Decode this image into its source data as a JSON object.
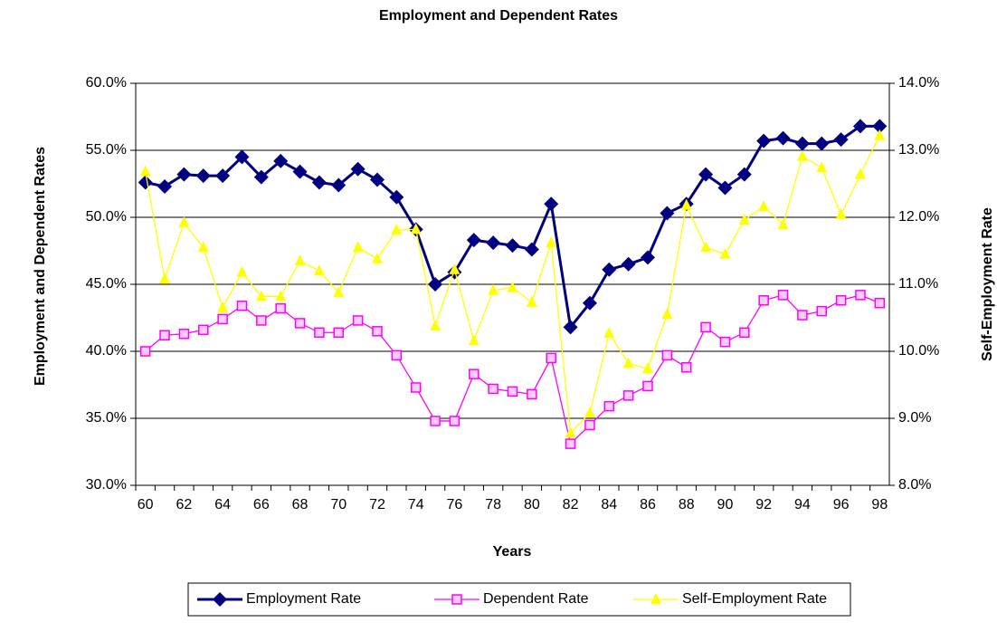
{
  "chart_data": {
    "type": "line",
    "title": "Employment and Dependent Rates",
    "xlabel": "Years",
    "ylabel": "Employment and Dependent Rates",
    "y2label": "Self-Employment Rate",
    "categories": [
      "60",
      null,
      "62",
      null,
      "64",
      null,
      "66",
      null,
      "68",
      null,
      "70",
      null,
      "72",
      null,
      "74",
      null,
      "76",
      null,
      "78",
      null,
      "80",
      null,
      "82",
      null,
      "84",
      null,
      "86",
      null,
      "88",
      null,
      "90",
      null,
      "92",
      null,
      "94",
      null,
      "96",
      null,
      "98"
    ],
    "series": [
      {
        "name": "Employment Rate",
        "color": "#000080",
        "marker": "diamond",
        "values": [
          52.6,
          52.3,
          53.2,
          53.1,
          53.1,
          54.5,
          53.0,
          54.2,
          53.4,
          52.6,
          52.4,
          53.6,
          52.8,
          51.5,
          49.1,
          45.0,
          45.9,
          48.3,
          48.1,
          47.9,
          47.6,
          51.0,
          41.8,
          43.6,
          46.1,
          46.5,
          47.0,
          50.3,
          51.0,
          53.2,
          52.2,
          53.2,
          55.7,
          55.9,
          55.5,
          55.5,
          55.8,
          56.8,
          56.8
        ]
      },
      {
        "name": "Dependent Rate",
        "color": "#ff00ff",
        "marker": "square",
        "values": [
          40.0,
          41.2,
          41.3,
          41.6,
          42.4,
          43.4,
          42.3,
          43.2,
          42.1,
          41.4,
          41.4,
          42.3,
          41.5,
          39.7,
          37.3,
          34.8,
          34.8,
          38.3,
          37.2,
          37.0,
          36.8,
          39.5,
          33.1,
          34.5,
          35.9,
          36.7,
          37.4,
          39.7,
          38.8,
          41.8,
          40.7,
          41.4,
          43.8,
          44.2,
          42.7,
          43.0,
          43.8,
          44.2,
          43.6
        ]
      },
      {
        "name": "Self-Employment Rate",
        "color": "#ffff00",
        "marker": "triangle",
        "axis": "y2",
        "values": [
          12.68,
          11.08,
          11.92,
          11.55,
          10.65,
          11.18,
          10.82,
          10.82,
          11.35,
          11.2,
          10.88,
          11.55,
          11.38,
          11.81,
          11.82,
          10.38,
          11.22,
          10.16,
          10.91,
          10.95,
          10.73,
          11.62,
          8.78,
          9.08,
          10.27,
          9.82,
          9.74,
          10.55,
          12.18,
          11.55,
          11.45,
          11.96,
          12.16,
          11.89,
          12.91,
          12.74,
          12.04,
          12.64,
          13.22
        ]
      }
    ],
    "ylim": [
      30,
      60
    ],
    "yticks": [
      {
        "value": 30,
        "label": "30.0%"
      },
      {
        "value": 35,
        "label": "35.0%"
      },
      {
        "value": 40,
        "label": "40.0%"
      },
      {
        "value": 45,
        "label": "45.0%"
      },
      {
        "value": 50,
        "label": "50.0%"
      },
      {
        "value": 55,
        "label": "55.0%"
      },
      {
        "value": 60,
        "label": "60.0%"
      }
    ],
    "y2lim": [
      8,
      14
    ],
    "y2ticks": [
      {
        "value": 8,
        "label": "8.0%"
      },
      {
        "value": 9,
        "label": "9.0%"
      },
      {
        "value": 10,
        "label": "10.0%"
      },
      {
        "value": 11,
        "label": "11.0%"
      },
      {
        "value": 12,
        "label": "12.0%"
      },
      {
        "value": 13,
        "label": "13.0%"
      },
      {
        "value": 14,
        "label": "14.0%"
      }
    ],
    "grid": true,
    "legend": "bottom"
  }
}
